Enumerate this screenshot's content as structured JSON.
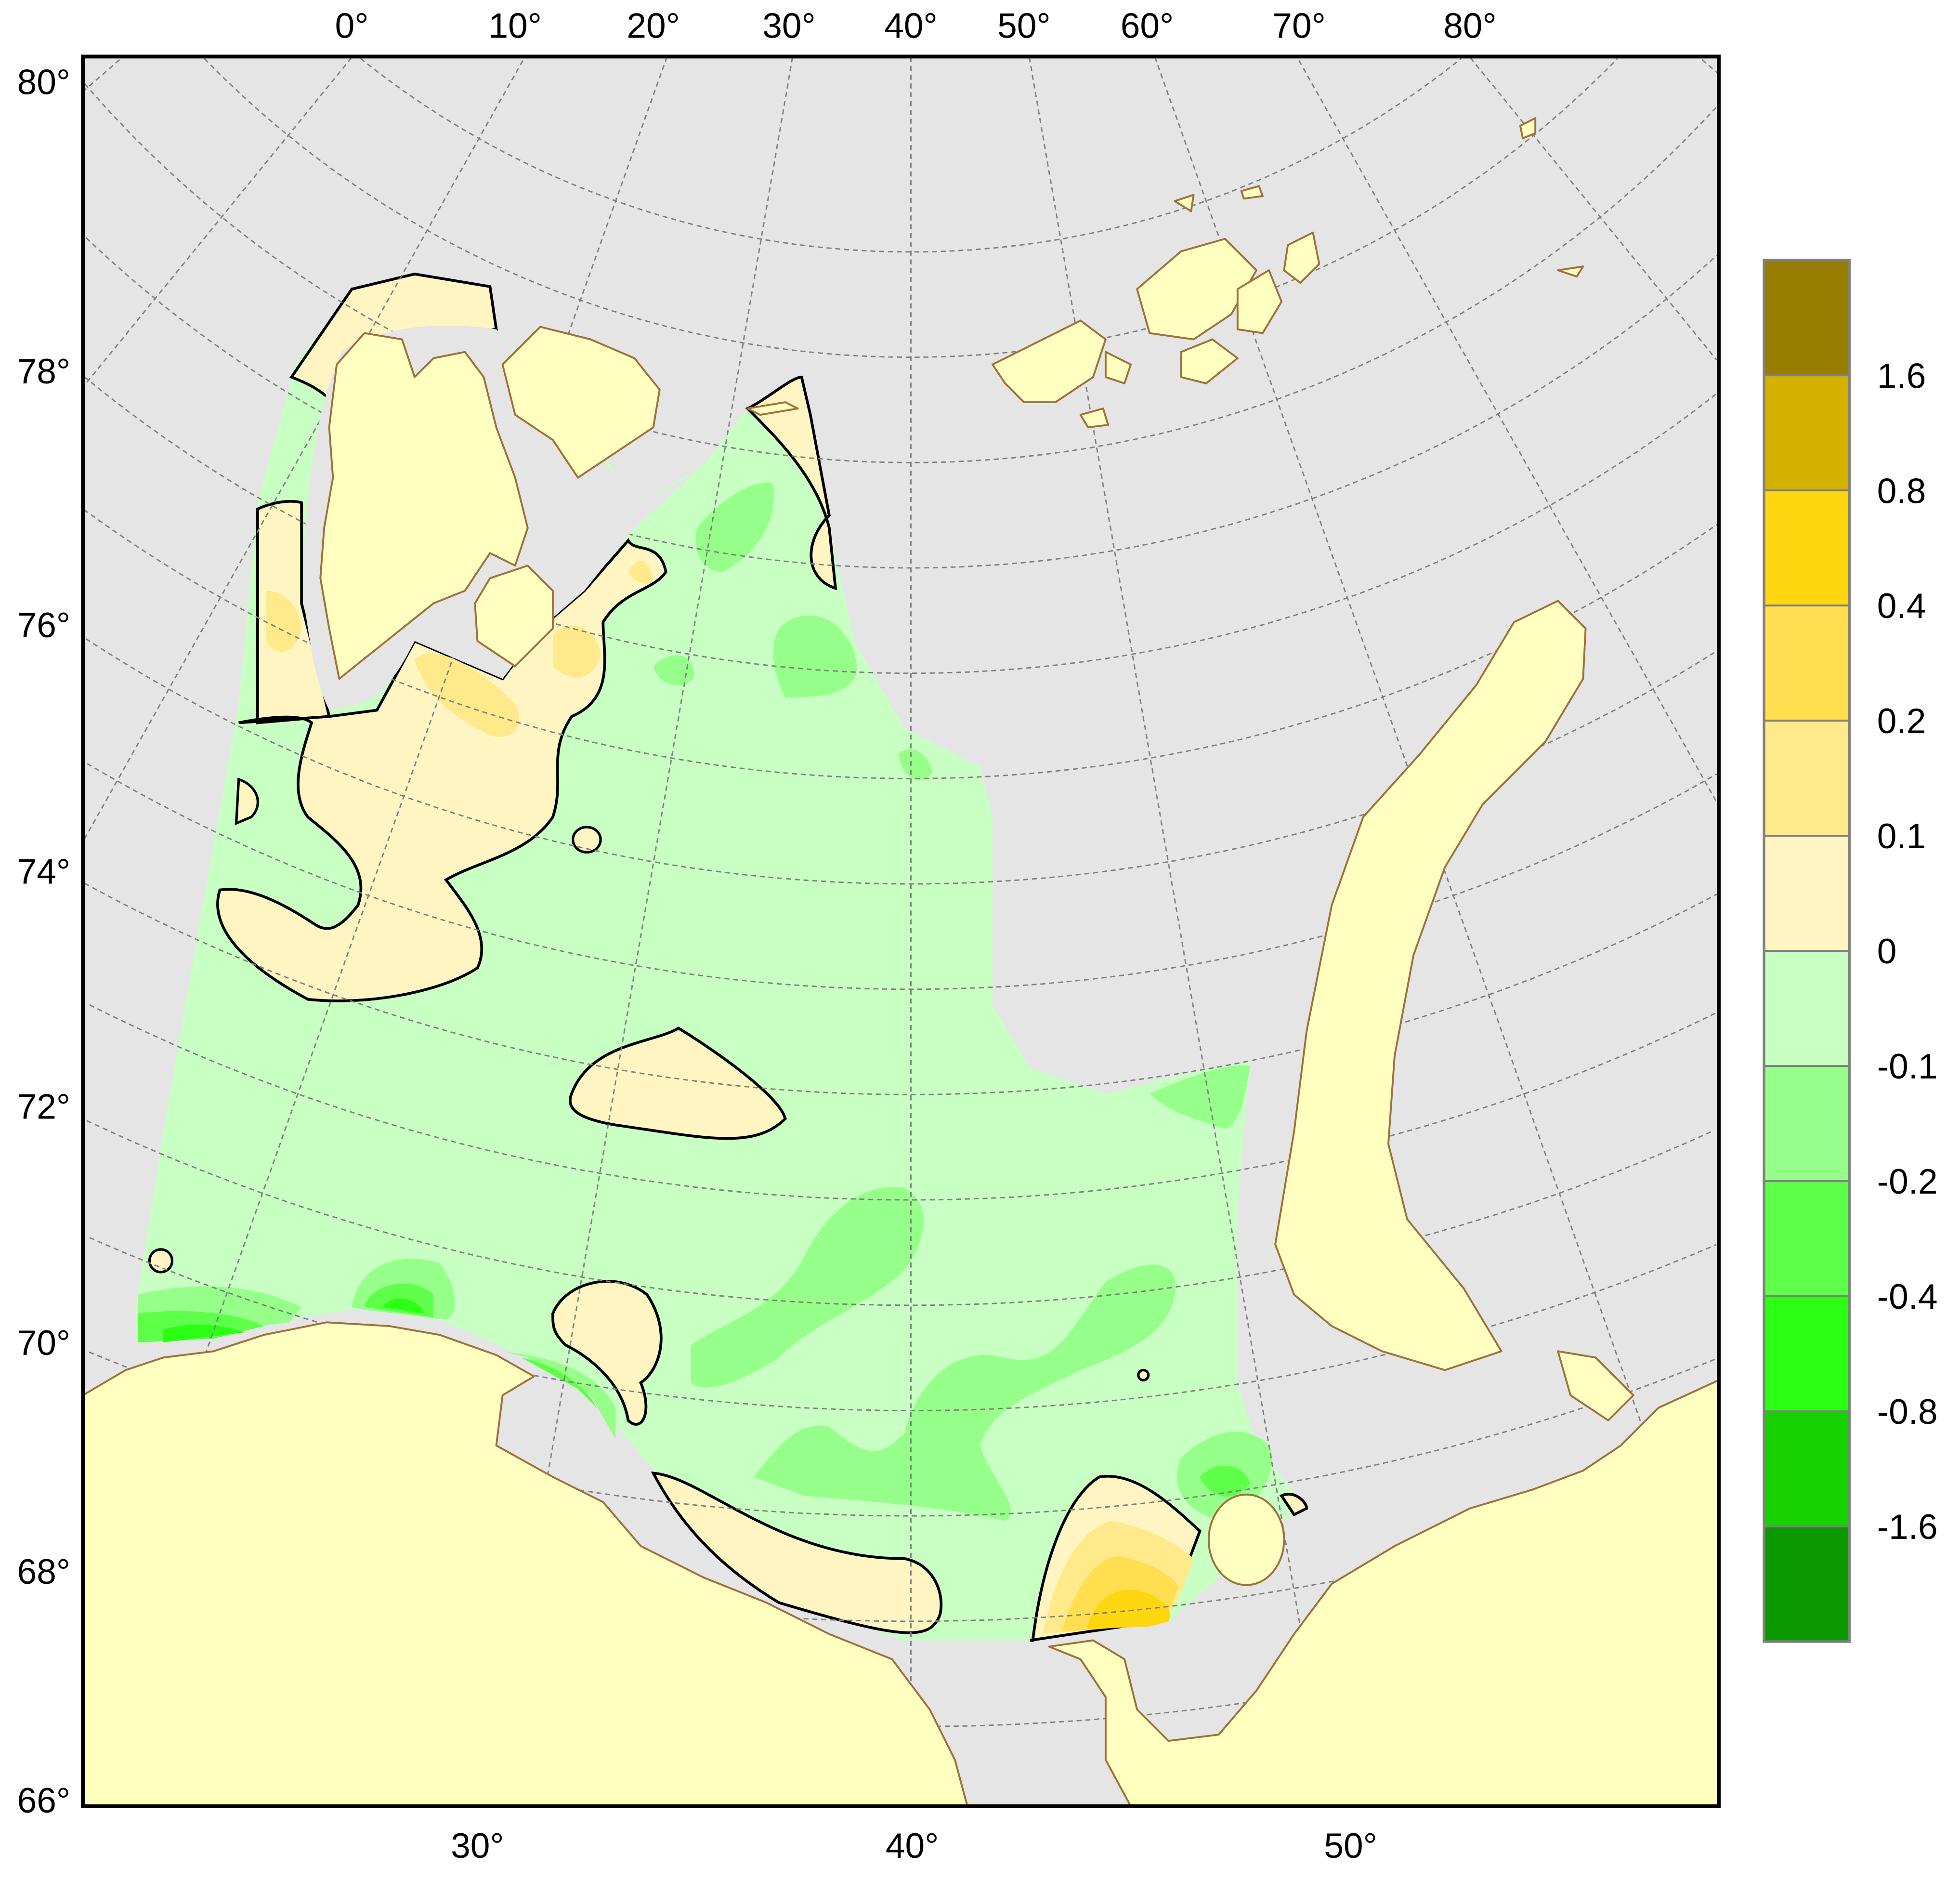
{
  "map": {
    "top_lon_labels": [
      "0°",
      "10°",
      "20°",
      "30°",
      "40°",
      "50°",
      "60°",
      "70°",
      "80°"
    ],
    "left_lat_labels": [
      "80°",
      "78°",
      "76°",
      "74°",
      "72°",
      "70°",
      "68°",
      "66°"
    ],
    "bottom_lon_labels": [
      "30°",
      "40°",
      "50°"
    ],
    "colors": {
      "background": "#E5E5E5",
      "land": "#FFFFC0",
      "coastline": "#A0703C",
      "zero_contour": "#000000",
      "graticule": "#808080"
    }
  },
  "legend": {
    "labels": [
      "1.6",
      "0.8",
      "0.4",
      "0.2",
      "0.1",
      "0",
      "-0.1",
      "-0.2",
      "-0.4",
      "-0.8",
      "-1.6"
    ],
    "colors": [
      "#987E00",
      "#D4B000",
      "#FFD710",
      "#FFDF50",
      "#FFE98A",
      "#FFF5C3",
      "#C8FFC3",
      "#96FF8A",
      "#5EFF48",
      "#2AFF14",
      "#16D200",
      "#0C9900"
    ]
  }
}
